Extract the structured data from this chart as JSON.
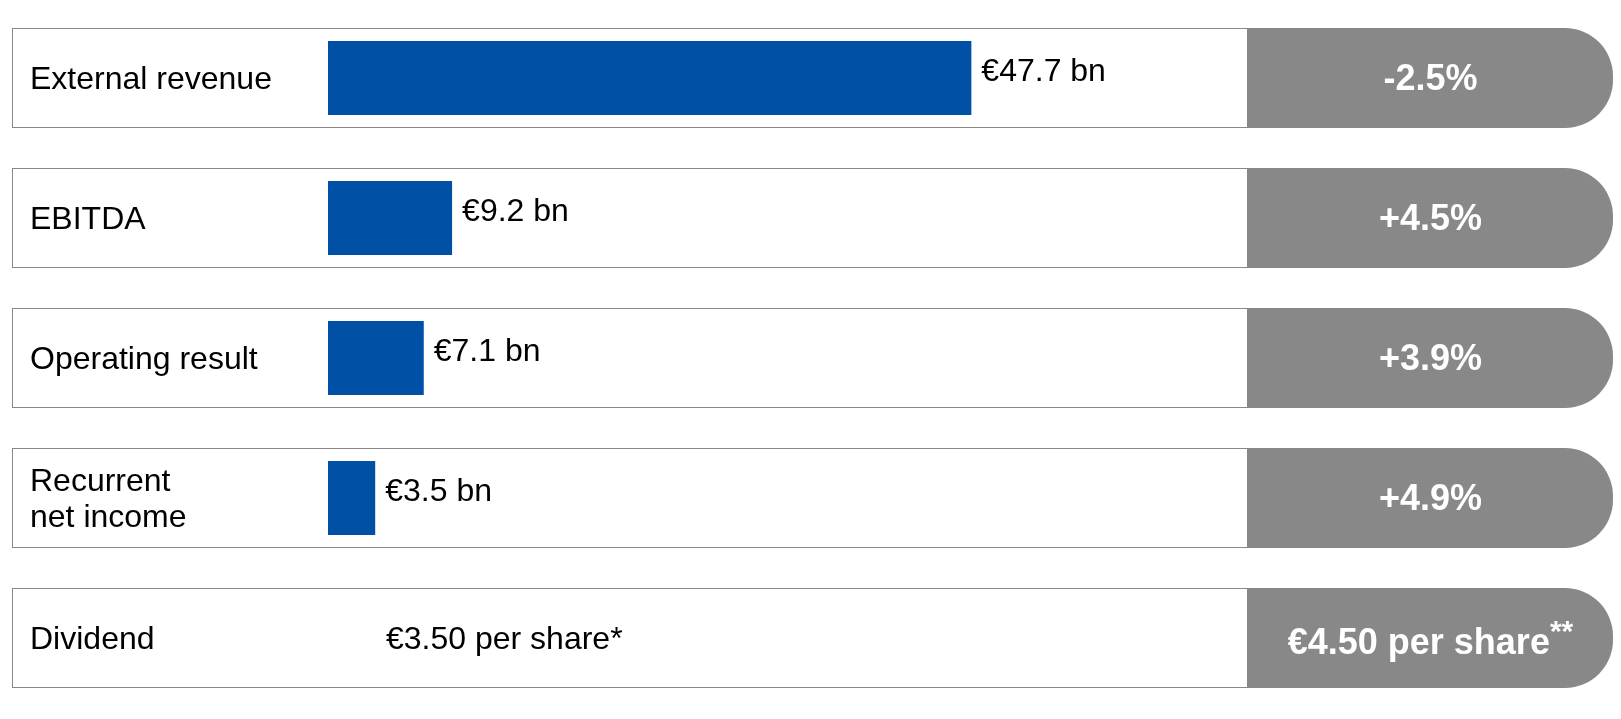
{
  "chart_data": {
    "type": "bar",
    "orientation": "horizontal",
    "categories": [
      "External revenue",
      "EBITDA",
      "Operating result",
      "Recurrent net income",
      "Dividend"
    ],
    "values": [
      47.7,
      9.2,
      7.1,
      3.5,
      null
    ],
    "value_labels": [
      "€47.7 bn",
      "€9.2 bn",
      "€7.1 bn",
      "€3.5 bn",
      "€3.50 per share*"
    ],
    "color": "#0050a5",
    "annotations": [
      "-2.5%",
      "+4.5%",
      "+3.9%",
      "+4.9%",
      "€4.50 per share$^{**}$"
    ]
  }
}
